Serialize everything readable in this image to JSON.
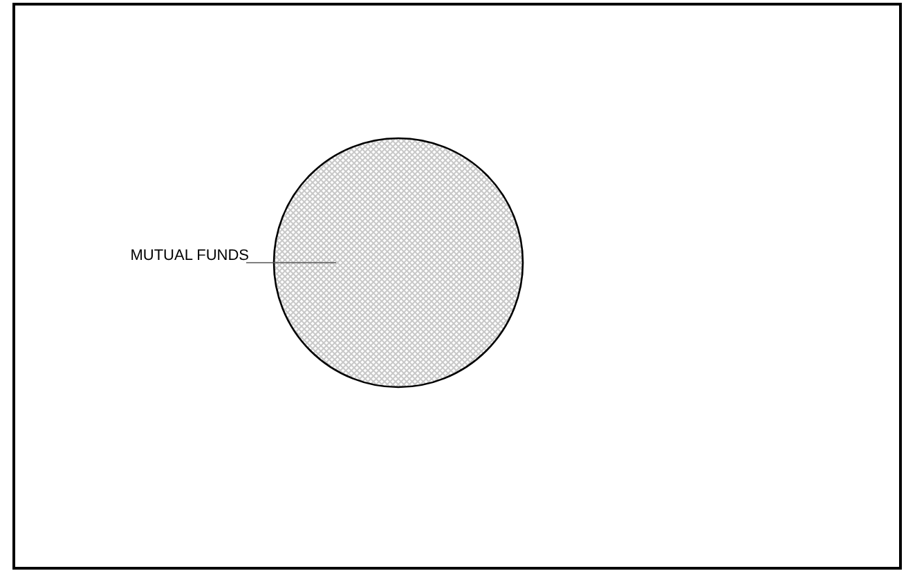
{
  "chart_data": {
    "type": "pie",
    "categories": [
      "MUTUAL FUNDS"
    ],
    "values": [
      100
    ],
    "colors": [
      "#c8c8c8"
    ]
  }
}
